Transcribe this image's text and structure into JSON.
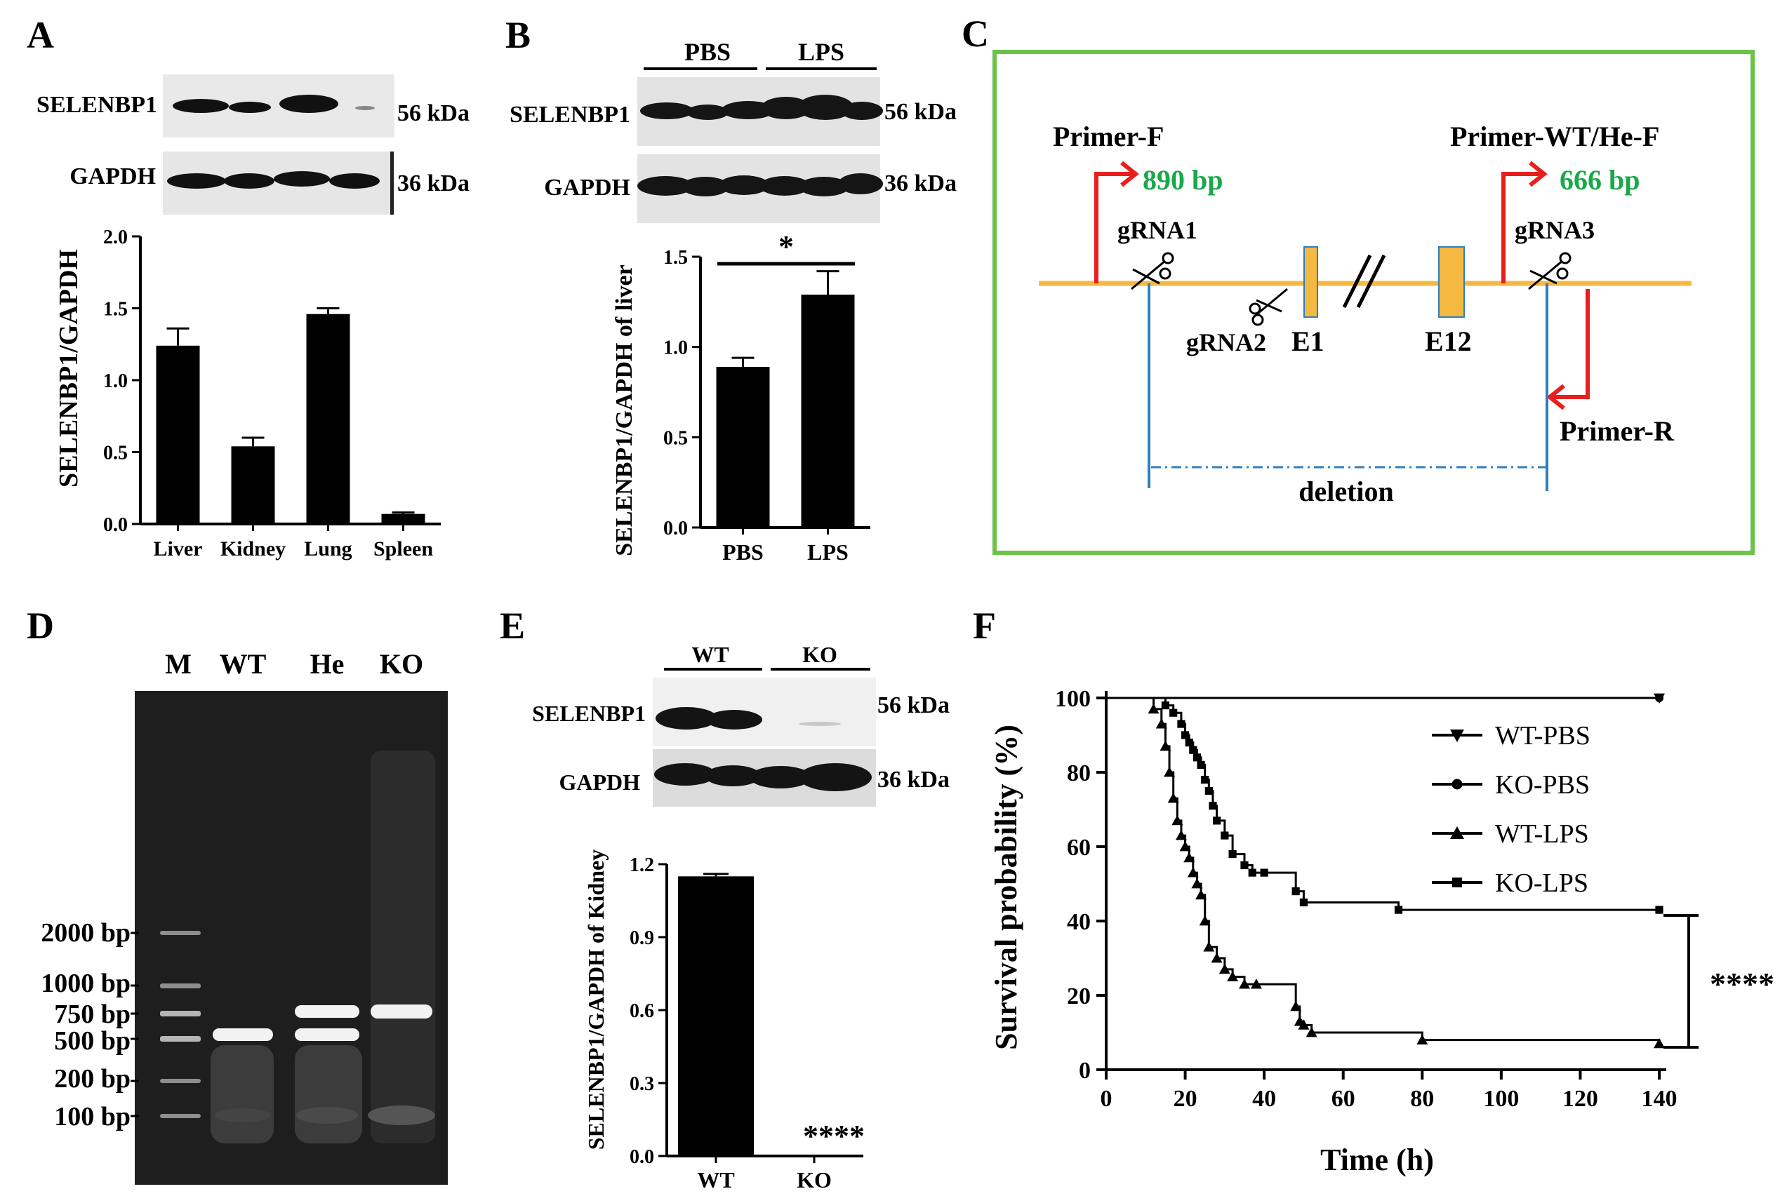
{
  "panels": {
    "A": {
      "letter": "A",
      "blot": {
        "row1": "SELENBP1",
        "row1_size": "56 kDa",
        "row2": "GAPDH",
        "row2_size": "36 kDa"
      },
      "chart_data": {
        "type": "bar",
        "categories": [
          "Liver",
          "Kidney",
          "Lung",
          "Spleen"
        ],
        "values": [
          1.24,
          0.54,
          1.46,
          0.07
        ],
        "errors": [
          0.12,
          0.06,
          0.04,
          0.01
        ],
        "ylabel": "SELENBP1/GAPDH",
        "ylim": [
          0,
          2.0
        ],
        "yticks": [
          "0.0",
          "0.5",
          "1.0",
          "1.5",
          "2.0"
        ]
      }
    },
    "B": {
      "letter": "B",
      "blot": {
        "group1": "PBS",
        "group2": "LPS",
        "row1": "SELENBP1",
        "row1_size": "56 kDa",
        "row2": "GAPDH",
        "row2_size": "36 kDa"
      },
      "significance": "*",
      "chart_data": {
        "type": "bar",
        "categories": [
          "PBS",
          "LPS"
        ],
        "values": [
          0.89,
          1.29
        ],
        "errors": [
          0.05,
          0.13
        ],
        "ylabel": "SELENBP1/GAPDH of liver",
        "ylim": [
          0,
          1.5
        ],
        "yticks": [
          "0.0",
          "0.5",
          "1.0",
          "1.5"
        ]
      }
    },
    "C": {
      "letter": "C",
      "labels": {
        "primer_f": "Primer-F",
        "size_f": "890 bp",
        "primer_wt": "Primer-WT/He-F",
        "size_wt": "666 bp",
        "grna1": "gRNA1",
        "grna2": "gRNA2",
        "grna3": "gRNA3",
        "e1": "E1",
        "e12": "E12",
        "primer_r": "Primer-R",
        "deletion": "deletion"
      },
      "colors": {
        "border": "#6cc24a",
        "gene_line": "#f5b942",
        "exon": "#f5b942",
        "primer": "#e8201c",
        "cut": "#2e7fbf",
        "size_text": "#1aa84a"
      }
    },
    "D": {
      "letter": "D",
      "lanes": [
        "M",
        "WT",
        "He",
        "KO"
      ],
      "ladder": [
        "2000 bp",
        "1000 bp",
        "750 bp",
        "500 bp",
        "200 bp",
        "100 bp"
      ]
    },
    "E": {
      "letter": "E",
      "blot": {
        "group1": "WT",
        "group2": "KO",
        "row1": "SELENBP1",
        "row1_size": "56 kDa",
        "row2": "GAPDH",
        "row2_size": "36 kDa"
      },
      "significance": "****",
      "chart_data": {
        "type": "bar",
        "categories": [
          "WT",
          "KO"
        ],
        "values": [
          1.15,
          0.0
        ],
        "errors": [
          0.01,
          0.0
        ],
        "ylabel": "SELENBP1/GAPDH of Kidney",
        "ylim": [
          0,
          1.2
        ],
        "yticks": [
          "0.0",
          "0.3",
          "0.6",
          "0.9",
          "1.2"
        ]
      }
    },
    "F": {
      "letter": "F",
      "significance": "****",
      "chart_data": {
        "type": "line",
        "xlabel": "Time (h)",
        "ylabel": "Survival probability (%)",
        "xlim": [
          0,
          140
        ],
        "ylim": [
          0,
          100
        ],
        "xticks": [
          "0",
          "20",
          "40",
          "60",
          "80",
          "100",
          "120",
          "140"
        ],
        "yticks": [
          "0",
          "20",
          "40",
          "60",
          "80",
          "100"
        ],
        "legend_position": "top-right",
        "series": [
          {
            "name": "WT-PBS",
            "marker": "triangle-down",
            "x": [
              0,
              140
            ],
            "y": [
              100,
              100
            ]
          },
          {
            "name": "KO-PBS",
            "marker": "circle",
            "x": [
              0,
              140
            ],
            "y": [
              100,
              100
            ]
          },
          {
            "name": "WT-LPS",
            "marker": "triangle-up",
            "x": [
              0,
              12,
              14,
              15,
              16,
              17,
              18,
              19,
              20,
              21,
              22,
              23,
              24,
              25,
              26,
              28,
              30,
              32,
              35,
              38,
              48,
              49,
              50,
              52,
              80,
              140
            ],
            "y": [
              100,
              97,
              93,
              87,
              80,
              73,
              67,
              63,
              60,
              57,
              53,
              50,
              47,
              40,
              33,
              30,
              27,
              25,
              23,
              23,
              17,
              13,
              12,
              10,
              8,
              7
            ]
          },
          {
            "name": "KO-LPS",
            "marker": "square",
            "x": [
              0,
              15,
              17,
              19,
              20,
              21,
              22,
              23,
              24,
              25,
              26,
              27,
              28,
              30,
              32,
              35,
              37,
              40,
              48,
              50,
              74,
              140
            ],
            "y": [
              100,
              98,
              96,
              93,
              90,
              88,
              86,
              84,
              82,
              78,
              75,
              71,
              67,
              63,
              58,
              55,
              53,
              53,
              48,
              45,
              43,
              43
            ]
          }
        ]
      }
    }
  }
}
